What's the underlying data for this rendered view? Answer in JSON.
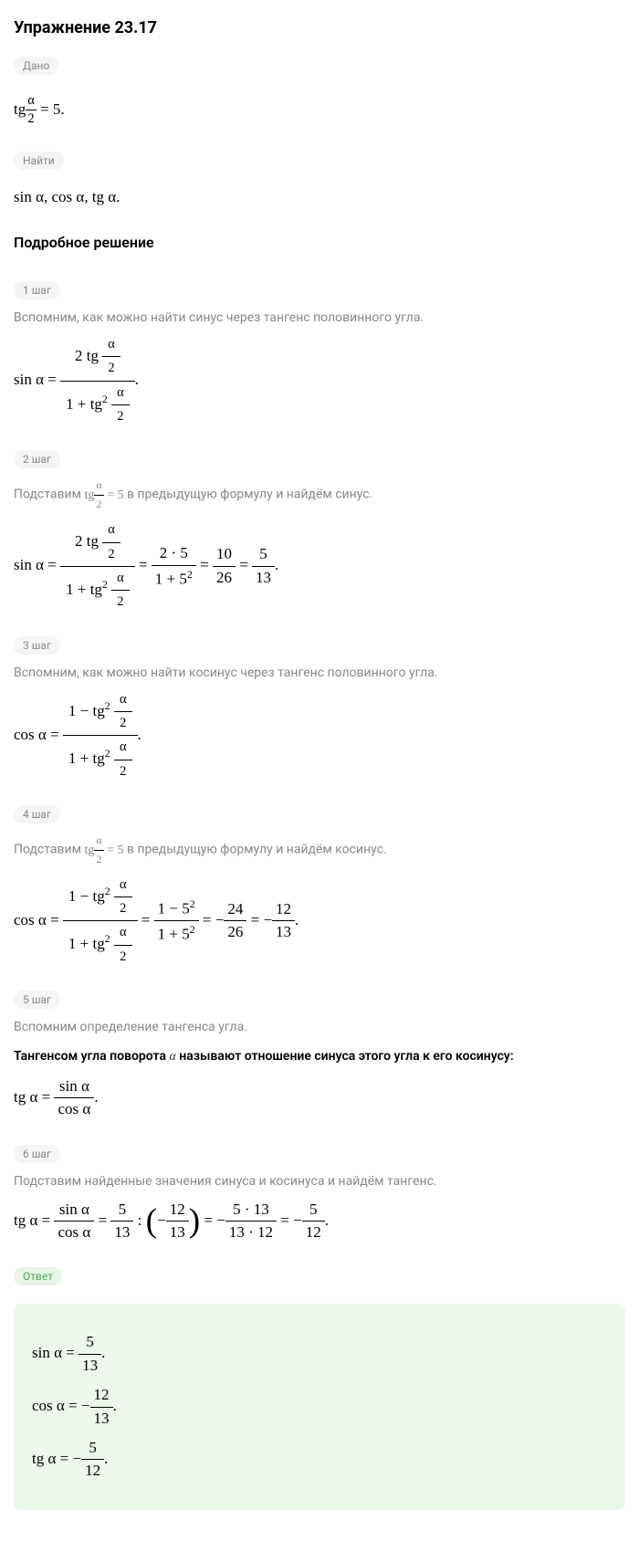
{
  "title": "Упражнение 23.17",
  "given_label": "Дано",
  "given_formula_parts": {
    "tg": "tg",
    "alpha": "α",
    "two": "2",
    "eq5": " = 5."
  },
  "find_label": "Найти",
  "find_text": "sin α,  cos α,  tg α.",
  "solution_title": "Подробное решение",
  "steps": [
    {
      "badge": "1 шаг",
      "text": "Вспомним, как можно найти синус через тангенс половинного угла."
    },
    {
      "badge": "2 шаг",
      "text_prefix": "Подставим ",
      "text_suffix": " в предыдущую формулу и найдём синус."
    },
    {
      "badge": "3 шаг",
      "text": "Вспомним, как можно найти косинус через тангенс половинного угла."
    },
    {
      "badge": "4 шаг",
      "text_prefix": "Подставим ",
      "text_suffix": " в предыдущую формулу и найдём косинус."
    },
    {
      "badge": "5 шаг",
      "text": "Вспомним определение тангенса угла.",
      "def_prefix": "Тангенсом угла поворота ",
      "def_alpha": "α",
      "def_suffix": " называют отношение синуса этого угла к его косинусу:"
    },
    {
      "badge": "6 шаг",
      "text": "Подставим найденные значения синуса и косинуса и найдём тангенс."
    }
  ],
  "answer_label": "Ответ",
  "math": {
    "sin": "sin α",
    "cos": "cos α",
    "tg_a": "tg α",
    "tg": "tg",
    "tg2": "tg",
    "sq": "2",
    "alpha": "α",
    "two": "2",
    "eq": " = ",
    "eq5": " = 5",
    "minus": "−",
    "dot": " · ",
    "colon": " : ",
    "period": ".",
    "one": "1",
    "two_mult": "2",
    "five": "5",
    "five_sq": "5",
    "ten": "10",
    "twentysix": "26",
    "thirteen": "13",
    "twentyfour": "24",
    "twelve": "12",
    "one_plus": "1 + ",
    "one_minus": "1 − ",
    "two_dot_five": "2 · 5",
    "one_plus_5sq": "1 + 5",
    "one_minus_5sq": "1 − 5",
    "five_13": "5 · 13",
    "thirteen_12": "13 · 12"
  }
}
